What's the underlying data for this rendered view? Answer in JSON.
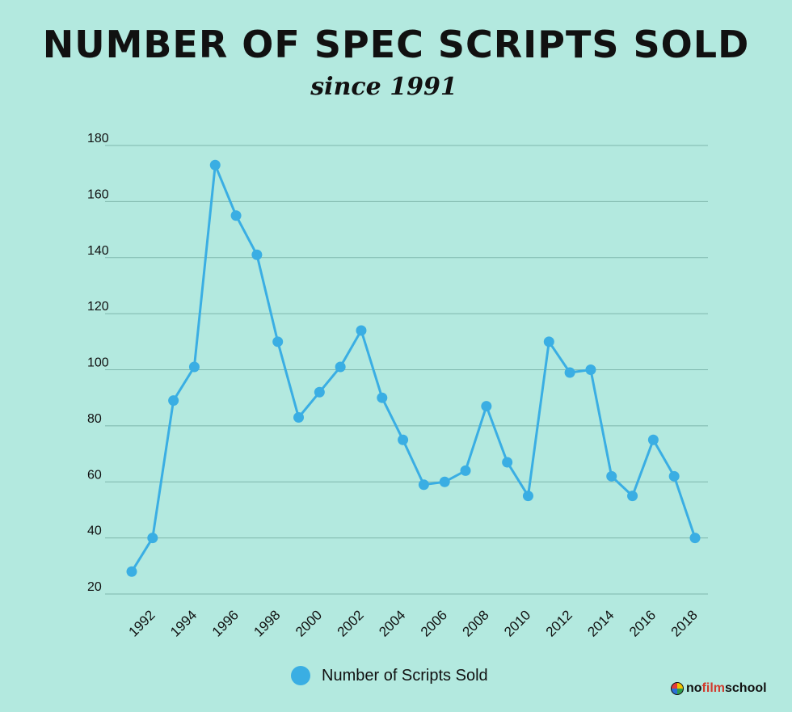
{
  "title": "NUMBER OF SPEC SCRIPTS SOLD",
  "subtitle": "since 1991",
  "legend": {
    "label": "Number of Scripts Sold"
  },
  "brand": {
    "no": "no",
    "film": "film",
    "school": "school"
  },
  "colors": {
    "background": "#b3e9df",
    "series": "#3aaee3",
    "grid": "#7fb7ad",
    "text": "#111111"
  },
  "chart_data": {
    "type": "line",
    "title": "NUMBER OF SPEC SCRIPTS SOLD",
    "subtitle": "since 1991",
    "x": [
      1991,
      1992,
      1993,
      1994,
      1995,
      1996,
      1997,
      1998,
      1999,
      2000,
      2001,
      2002,
      2003,
      2004,
      2005,
      2006,
      2007,
      2008,
      2009,
      2010,
      2011,
      2012,
      2013,
      2014,
      2015,
      2016,
      2017,
      2018
    ],
    "x_tick_labels": [
      "1992",
      "1994",
      "1996",
      "1998",
      "2000",
      "2002",
      "2004",
      "2006",
      "2008",
      "2010",
      "2012",
      "2014",
      "2016",
      "2018"
    ],
    "y_ticks": [
      20,
      40,
      60,
      80,
      100,
      120,
      140,
      160,
      180
    ],
    "ylim": [
      20,
      180
    ],
    "grid": true,
    "legend_position": "bottom",
    "series": [
      {
        "name": "Number of Scripts Sold",
        "values": [
          28,
          40,
          89,
          101,
          173,
          155,
          141,
          110,
          83,
          92,
          101,
          114,
          90,
          75,
          59,
          60,
          64,
          87,
          67,
          55,
          110,
          99,
          100,
          62,
          55,
          75,
          62,
          40
        ]
      }
    ]
  }
}
